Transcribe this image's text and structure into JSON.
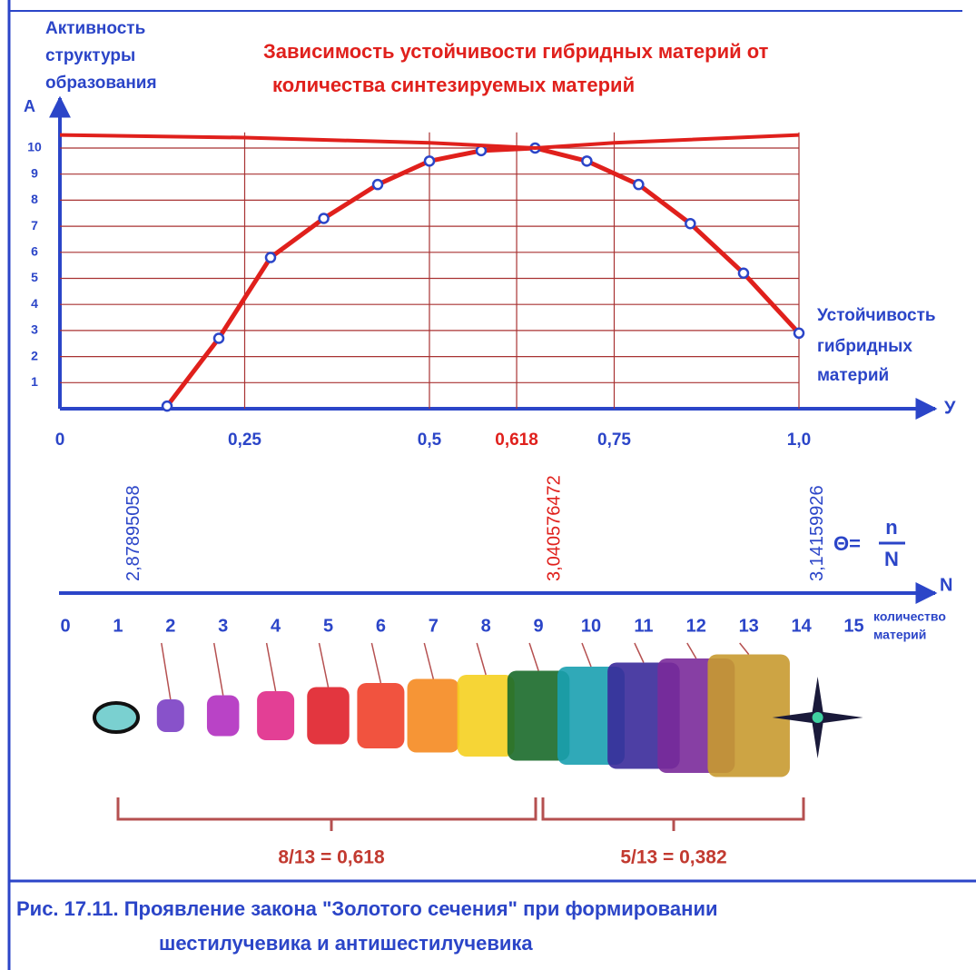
{
  "chart_data": {
    "type": "line",
    "title": [
      "Зависимость устойчивости гибридных материй от",
      "количества синтезируемых материй"
    ],
    "y_label": [
      "Активность",
      "структуры",
      "образования"
    ],
    "y_symbol": "A",
    "x_label": [
      "Устойчивость",
      "гибридных",
      "материй"
    ],
    "x_symbol": "У",
    "xlim": [
      0,
      1.0
    ],
    "ylim": [
      0,
      10
    ],
    "xticks": [
      0,
      {
        "value": 0.25,
        "label": "0,25"
      },
      {
        "value": 0.5,
        "label": "0,5"
      },
      {
        "value": 0.618,
        "label": "0,618"
      },
      {
        "value": 0.75,
        "label": "0,75"
      },
      {
        "value": 1.0,
        "label": "1,0"
      }
    ],
    "yticks": [
      1,
      2,
      3,
      4,
      5,
      6,
      7,
      8,
      9,
      10
    ],
    "grid": true,
    "grid_color": "#a83232",
    "series": [
      {
        "color": "#e0201c",
        "marker_color": "#2b45c8",
        "x": [
          0.145,
          0.215,
          0.285,
          0.357,
          0.43,
          0.5,
          0.57,
          0.643,
          0.713,
          0.783,
          0.853,
          0.925,
          1.0
        ],
        "values": [
          0.1,
          2.7,
          5.8,
          7.3,
          8.6,
          9.5,
          9.9,
          10,
          9.5,
          8.6,
          7.1,
          5.2,
          2.9
        ]
      },
      {
        "color": "#e0201c",
        "x": [
          0,
          0.25,
          0.5,
          0.643,
          0.75,
          1.0
        ],
        "values": [
          10.5,
          10.4,
          10.2,
          10,
          10.2,
          10.5
        ]
      }
    ]
  },
  "scale": {
    "ticks": [
      "0",
      "1",
      "2",
      "3",
      "4",
      "5",
      "6",
      "7",
      "8",
      "9",
      "10",
      "11",
      "12",
      "13",
      "14",
      "15"
    ],
    "axis_symbol": "N",
    "axis_caption": [
      "количество",
      "материй"
    ],
    "constants": [
      "2,87895058",
      "3,040576472",
      "3,14159926"
    ],
    "formula": {
      "lhs": "Θ=",
      "numerator": "n",
      "denominator": "N"
    }
  },
  "ratios": [
    "8/13 = 0,618",
    "5/13 = 0,382"
  ],
  "caption": [
    "Рис. 17.11. Проявление закона \"Золотого сечения\" при формировании",
    "шестилучевика и антишестилучевика"
  ]
}
